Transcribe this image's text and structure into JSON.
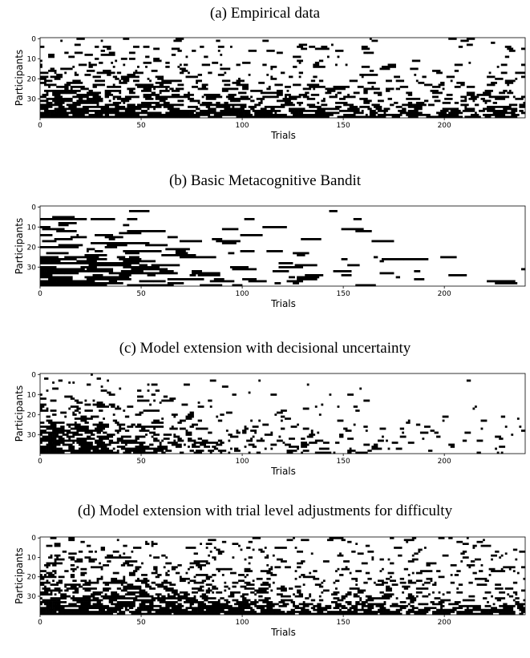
{
  "chart_data": [
    {
      "type": "heatmap",
      "title": "(a) Empirical data",
      "xlabel": "Trials",
      "ylabel": "Participants",
      "xlim": [
        0,
        240
      ],
      "ylim": [
        39,
        0
      ],
      "x_ticks": [
        0,
        50,
        100,
        150,
        200
      ],
      "y_ticks": [
        0,
        10,
        20,
        30
      ],
      "n_trials": 240,
      "n_participants": 40,
      "colors": {
        "one": "#000000",
        "zero": "#ffffff"
      },
      "pattern": {
        "base": 0.06,
        "gain": 0.9,
        "k": 0.012,
        "mix": 0.9,
        "runLen": 4,
        "noise": 0.06,
        "seed": 11
      }
    },
    {
      "type": "heatmap",
      "title": "(b) Basic Metacognitive Bandit",
      "xlabel": "Trials",
      "ylabel": "Participants",
      "xlim": [
        0,
        240
      ],
      "ylim": [
        39,
        0
      ],
      "x_ticks": [
        0,
        50,
        100,
        150,
        200
      ],
      "y_ticks": [
        0,
        10,
        20,
        30
      ],
      "n_trials": 240,
      "n_participants": 40,
      "colors": {
        "one": "#000000",
        "zero": "#ffffff"
      },
      "pattern": {
        "base": 0.0,
        "gain": 1.0,
        "k": 0.018,
        "mix": 0.35,
        "runLen": 12,
        "noise": 0.01,
        "seed": 23
      }
    },
    {
      "type": "heatmap",
      "title": "(c) Model extension with decisional uncertainty",
      "xlabel": "Trials",
      "ylabel": "Participants",
      "xlim": [
        0,
        240
      ],
      "ylim": [
        39,
        0
      ],
      "x_ticks": [
        0,
        50,
        100,
        150,
        200
      ],
      "y_ticks": [
        0,
        10,
        20,
        30
      ],
      "n_trials": 240,
      "n_participants": 40,
      "colors": {
        "one": "#000000",
        "zero": "#ffffff"
      },
      "pattern": {
        "base": 0.0,
        "gain": 1.0,
        "k": 0.02,
        "mix": 0.55,
        "runLen": 3,
        "noise": 0.03,
        "seed": 37
      }
    },
    {
      "type": "heatmap",
      "title": "(d) Model extension with trial level adjustments for difficulty",
      "xlabel": "Trials",
      "ylabel": "Participants",
      "xlim": [
        0,
        240
      ],
      "ylim": [
        39,
        0
      ],
      "x_ticks": [
        0,
        50,
        100,
        150,
        200
      ],
      "y_ticks": [
        0,
        10,
        20,
        30
      ],
      "n_trials": 240,
      "n_participants": 40,
      "colors": {
        "one": "#000000",
        "zero": "#ffffff"
      },
      "pattern": {
        "base": 0.1,
        "gain": 0.85,
        "k": 0.015,
        "mix": 0.95,
        "runLen": 3,
        "noise": 0.12,
        "seed": 53
      }
    }
  ]
}
